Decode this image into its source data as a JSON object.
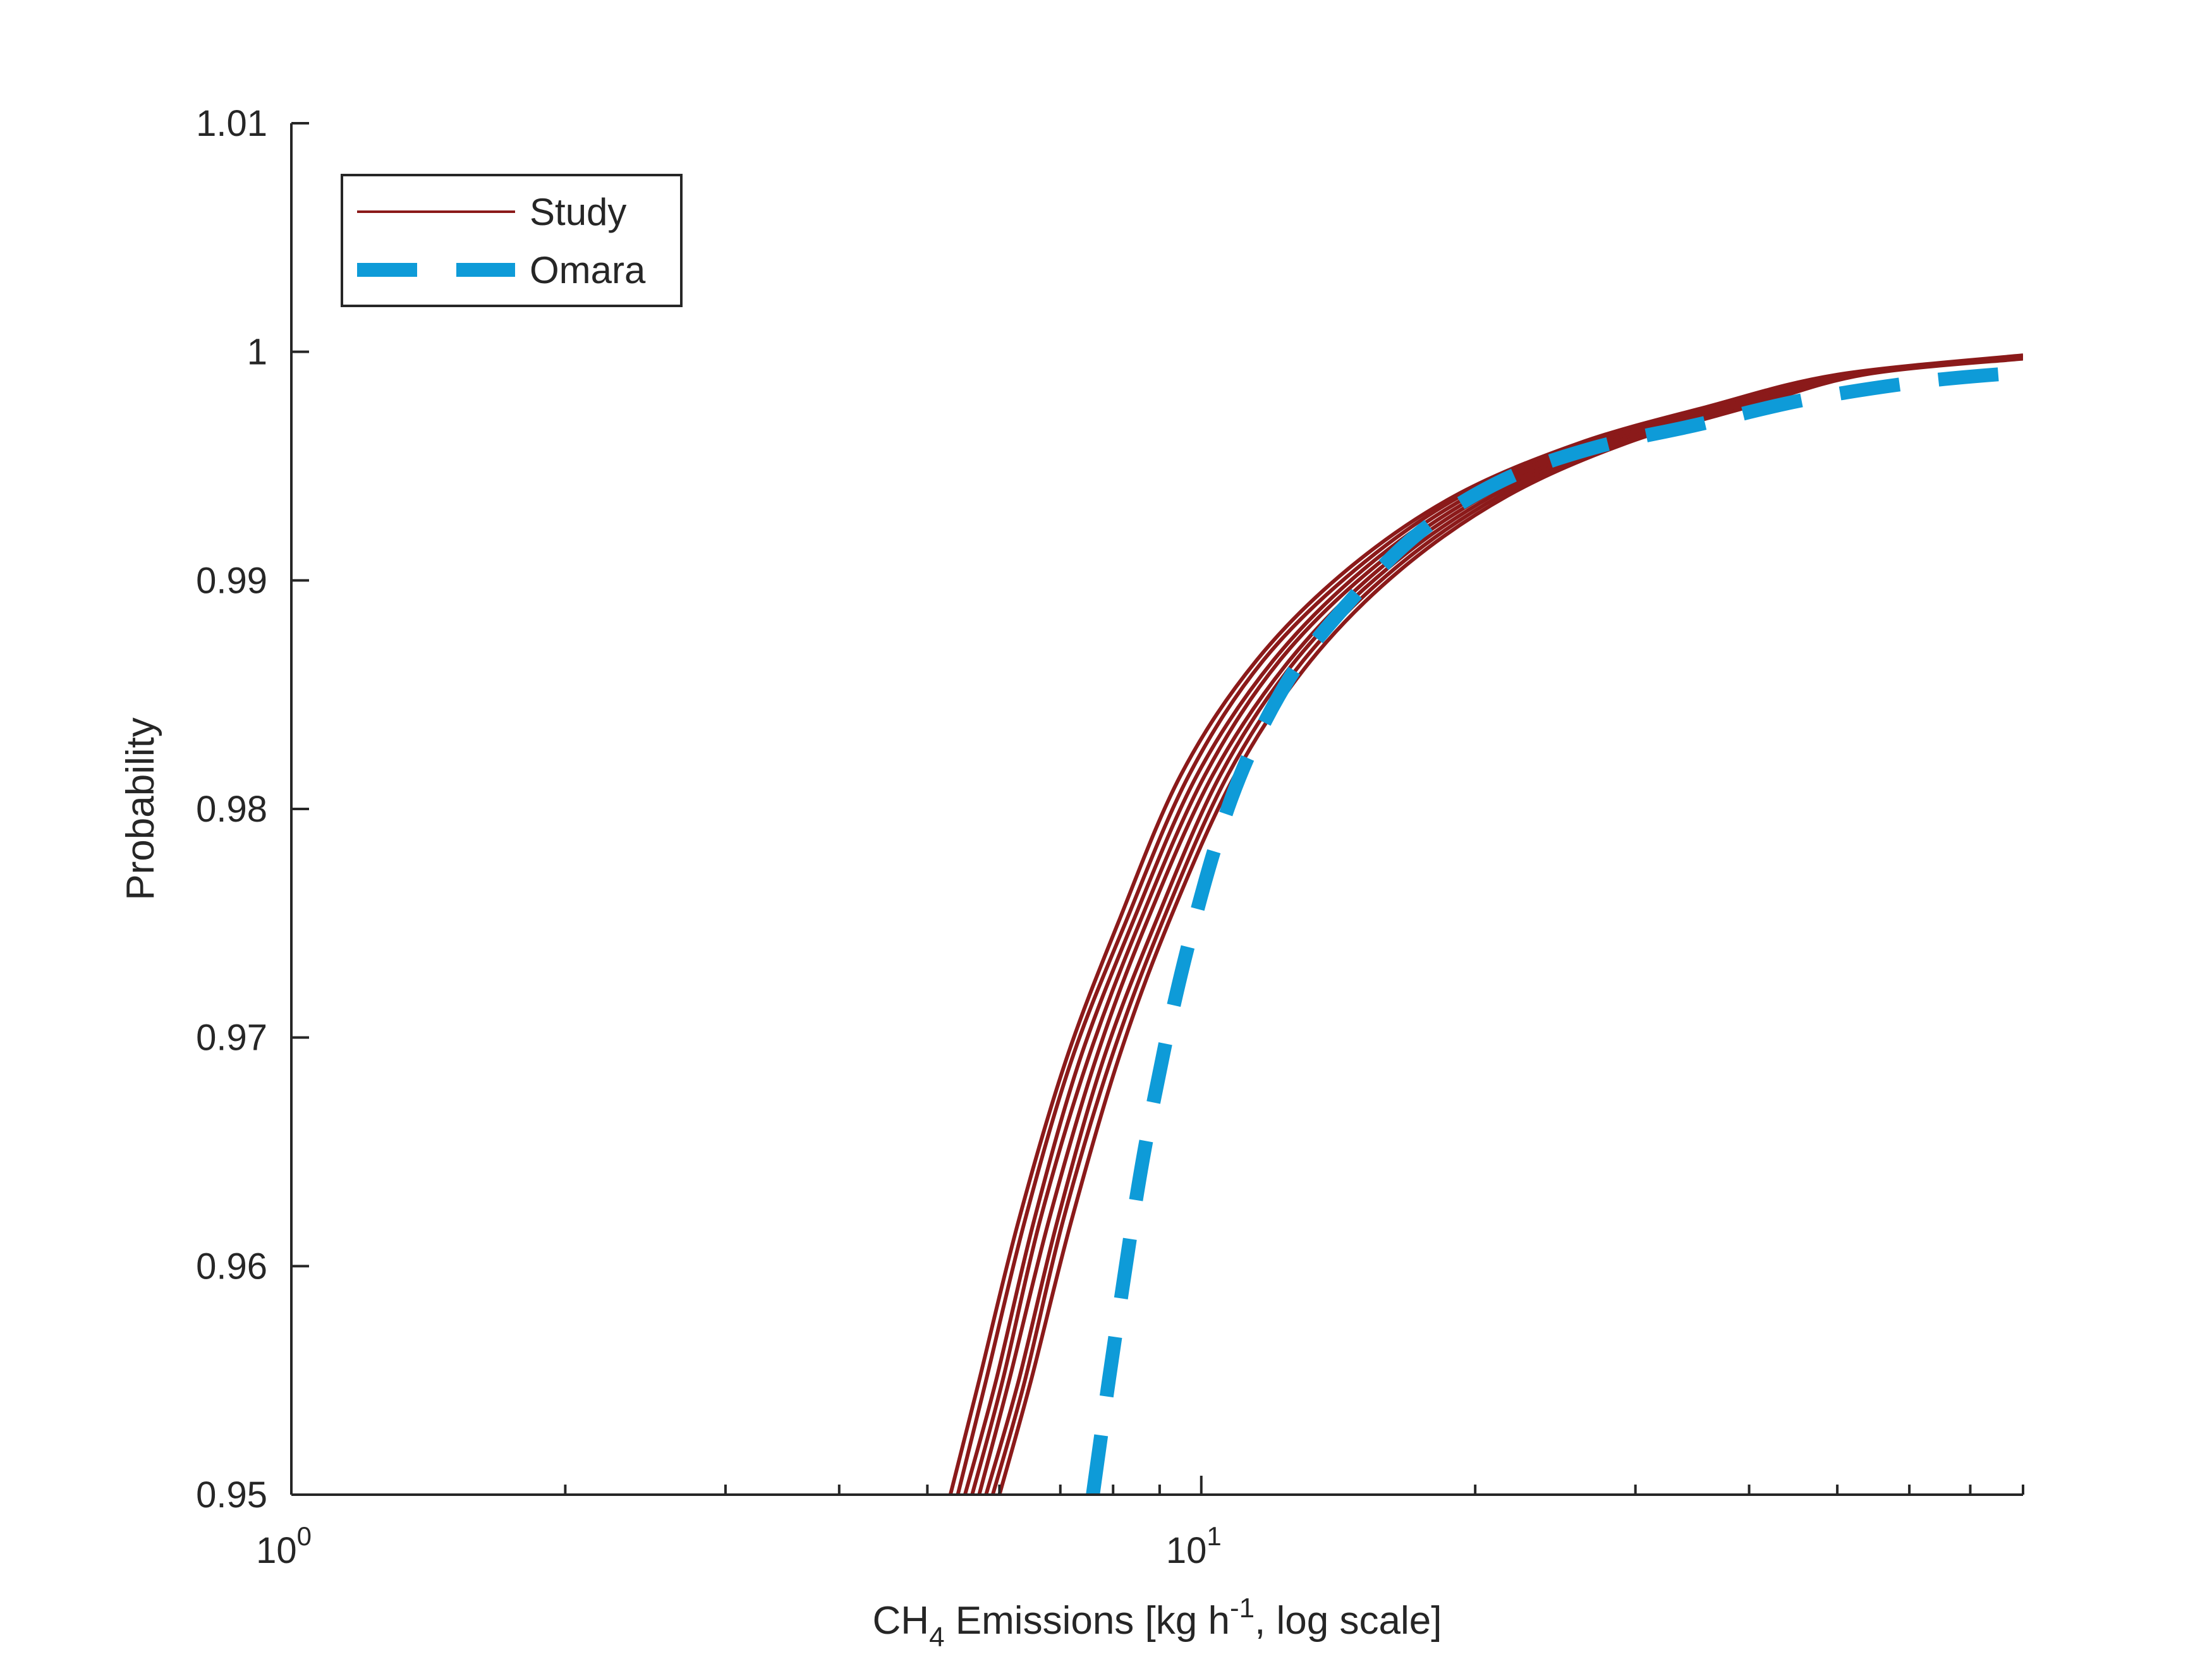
{
  "chart_data": {
    "type": "line",
    "xscale": "log",
    "xlim": [
      1,
      80
    ],
    "ylim": [
      0.95,
      1.01
    ],
    "xlabel": {
      "base": "CH",
      "sub": "4",
      "mid": " Emissions [kg h",
      "sup": "-1",
      "tail": ", log scale]"
    },
    "ylabel": "Probability",
    "x_ticks": [
      {
        "base": "10",
        "exp": "0"
      },
      {
        "base": "10",
        "exp": "1"
      }
    ],
    "y_ticks": [
      "0.95",
      "0.96",
      "0.97",
      "0.98",
      "0.99",
      "1",
      "1.01"
    ],
    "grid": false,
    "legend": {
      "position": "top-left",
      "entries": [
        {
          "label": "Study",
          "color": "#8B1A1A",
          "style": "solid"
        },
        {
          "label": "Omara",
          "color": "#0E9BD8",
          "style": "dashed"
        }
      ]
    },
    "series": [
      {
        "name": "Study",
        "color": "#8B1A1A",
        "x": [
          5.3,
          5.7,
          6.3,
          7.1,
          8.1,
          9.5,
          11.5,
          14.5,
          19,
          26,
          36,
          50,
          80
        ],
        "y": [
          0.95,
          0.955,
          0.962,
          0.969,
          0.975,
          0.9815,
          0.9865,
          0.9905,
          0.9937,
          0.996,
          0.9976,
          0.999,
          0.99985
        ]
      },
      {
        "name": "Study",
        "color": "#8B1A1A",
        "x": [
          5.4,
          5.8,
          6.4,
          7.2,
          8.25,
          9.7,
          11.7,
          14.8,
          19.3,
          26.3,
          36.5,
          50.5,
          80
        ],
        "y": [
          0.95,
          0.955,
          0.962,
          0.969,
          0.975,
          0.9815,
          0.9865,
          0.9905,
          0.9937,
          0.996,
          0.9976,
          0.999,
          0.99983
        ]
      },
      {
        "name": "Study",
        "color": "#8B1A1A",
        "x": [
          5.5,
          5.95,
          6.55,
          7.35,
          8.4,
          9.9,
          12.0,
          15.1,
          19.7,
          26.8,
          37.0,
          51.0,
          80
        ],
        "y": [
          0.95,
          0.955,
          0.962,
          0.969,
          0.975,
          0.9815,
          0.9865,
          0.9905,
          0.9937,
          0.996,
          0.9976,
          0.999,
          0.9998
        ]
      },
      {
        "name": "Study",
        "color": "#8B1A1A",
        "x": [
          5.6,
          6.05,
          6.65,
          7.5,
          8.55,
          10.1,
          12.2,
          15.4,
          20.1,
          27.3,
          37.6,
          51.5,
          80
        ],
        "y": [
          0.95,
          0.955,
          0.962,
          0.969,
          0.975,
          0.9815,
          0.9865,
          0.9905,
          0.9937,
          0.996,
          0.9976,
          0.999,
          0.99978
        ]
      },
      {
        "name": "Study",
        "color": "#8B1A1A",
        "x": [
          5.7,
          6.15,
          6.8,
          7.65,
          8.7,
          10.3,
          12.5,
          15.7,
          20.5,
          27.8,
          38.2,
          52.0,
          80
        ],
        "y": [
          0.95,
          0.955,
          0.962,
          0.969,
          0.975,
          0.9815,
          0.9865,
          0.9905,
          0.9937,
          0.996,
          0.9976,
          0.999,
          0.99976
        ]
      },
      {
        "name": "Study",
        "color": "#8B1A1A",
        "x": [
          5.8,
          6.3,
          6.95,
          7.8,
          8.9,
          10.5,
          12.7,
          16.0,
          20.9,
          28.3,
          38.8,
          52.5,
          80
        ],
        "y": [
          0.95,
          0.955,
          0.962,
          0.969,
          0.975,
          0.9815,
          0.9865,
          0.9905,
          0.9937,
          0.996,
          0.9976,
          0.999,
          0.99974
        ]
      },
      {
        "name": "Study",
        "color": "#8B1A1A",
        "x": [
          5.9,
          6.4,
          7.05,
          7.95,
          9.05,
          10.7,
          12.95,
          16.3,
          21.3,
          28.8,
          39.4,
          53.0,
          80
        ],
        "y": [
          0.95,
          0.955,
          0.962,
          0.969,
          0.975,
          0.9815,
          0.9865,
          0.9905,
          0.9937,
          0.996,
          0.9976,
          0.999,
          0.99972
        ]
      },
      {
        "name": "Study",
        "color": "#8B1A1A",
        "x": [
          6.0,
          6.5,
          7.2,
          8.1,
          9.2,
          10.9,
          13.2,
          16.6,
          21.7,
          29.3,
          40.0,
          53.5,
          80
        ],
        "y": [
          0.95,
          0.955,
          0.962,
          0.969,
          0.975,
          0.9815,
          0.9865,
          0.9905,
          0.9937,
          0.996,
          0.9976,
          0.999,
          0.9997
        ]
      },
      {
        "name": "Omara",
        "color": "#0E9BD8",
        "x": [
          7.6,
          8.05,
          8.7,
          9.6,
          10.8,
          12.4,
          14.5,
          17.5,
          21.5,
          27,
          35,
          46,
          62,
          80
        ],
        "y": [
          0.95,
          0.957,
          0.9655,
          0.9735,
          0.9805,
          0.9855,
          0.989,
          0.9922,
          0.9944,
          0.9958,
          0.9968,
          0.9979,
          0.9987,
          0.9991
        ]
      }
    ]
  }
}
